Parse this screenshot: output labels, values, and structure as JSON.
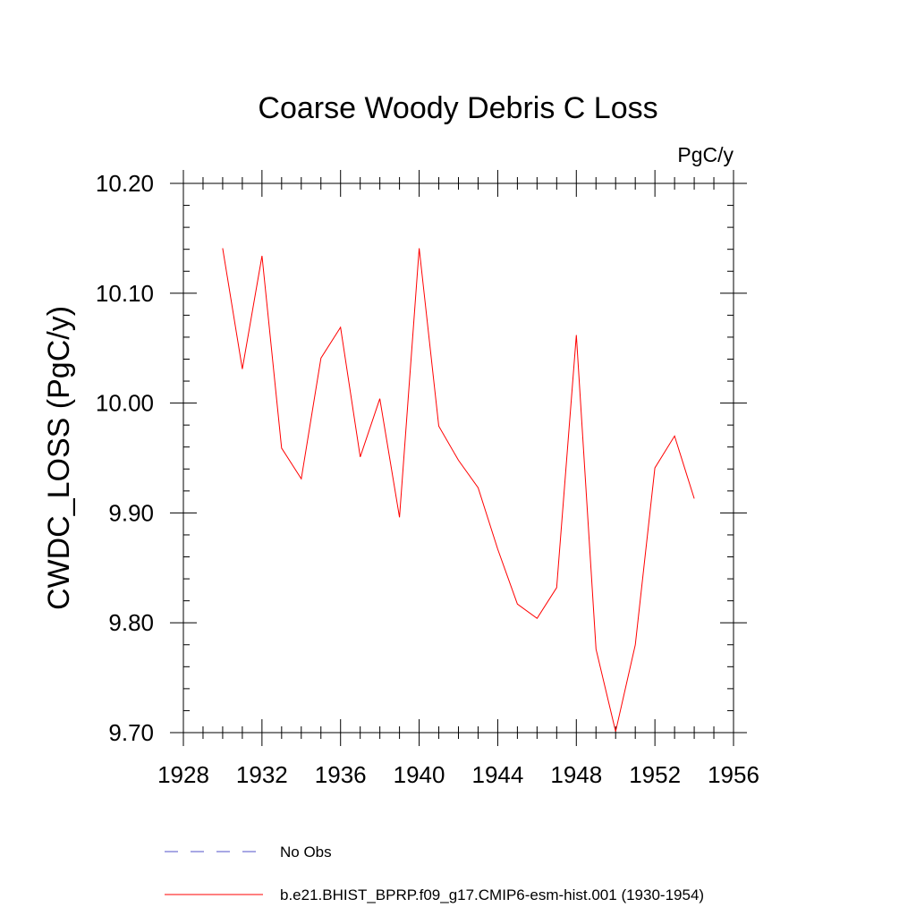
{
  "chart_data": {
    "type": "line",
    "title": "Coarse Woody Debris C Loss",
    "units": "PgC/y",
    "ylabel": "CWDC_LOSS  (PgC/y)",
    "xlabel": "",
    "xlim": [
      1928,
      1956
    ],
    "ylim": [
      9.7,
      10.2
    ],
    "x_ticks": [
      1928,
      1932,
      1936,
      1940,
      1944,
      1948,
      1952,
      1956
    ],
    "x_tick_labels": [
      "1928",
      "1932",
      "1936",
      "1940",
      "1944",
      "1948",
      "1952",
      "1956"
    ],
    "y_ticks": [
      9.7,
      9.8,
      9.9,
      10.0,
      10.1,
      10.2
    ],
    "y_tick_labels": [
      "9.70",
      "9.80",
      "9.90",
      "10.00",
      "10.10",
      "10.20"
    ],
    "series": [
      {
        "name": "b.e21.BHIST_BPRP.f09_g17.CMIP6-esm-hist.001 (1930-1954)",
        "color": "#ff0000",
        "x": [
          1930,
          1931,
          1932,
          1933,
          1934,
          1935,
          1936,
          1937,
          1938,
          1939,
          1940,
          1941,
          1942,
          1943,
          1944,
          1945,
          1946,
          1947,
          1948,
          1949,
          1950,
          1951,
          1952,
          1953,
          1954
        ],
        "values": [
          10.141,
          10.031,
          10.134,
          9.959,
          9.931,
          10.041,
          10.069,
          9.951,
          10.004,
          9.896,
          10.141,
          9.979,
          9.948,
          9.923,
          9.867,
          9.817,
          9.804,
          9.832,
          10.062,
          9.776,
          9.701,
          9.78,
          9.941,
          9.97,
          9.913
        ]
      }
    ],
    "legend": [
      {
        "label": "No Obs",
        "color": "#5050c8",
        "style": "dashed"
      },
      {
        "label": "b.e21.BHIST_BPRP.f09_g17.CMIP6-esm-hist.001 (1930-1954)",
        "color": "#ff0000",
        "style": "solid"
      }
    ]
  }
}
